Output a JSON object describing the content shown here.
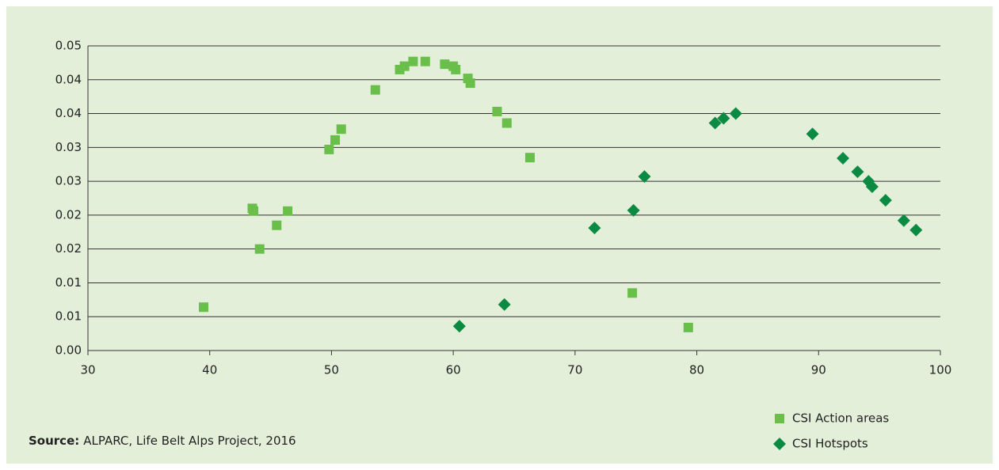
{
  "chart_data": {
    "type": "scatter",
    "xlim": [
      30,
      100
    ],
    "xticks": [
      30,
      40,
      50,
      60,
      70,
      80,
      90,
      100
    ],
    "ylim": [
      0,
      0.045
    ],
    "yticks": [
      {
        "value": 0,
        "label": "0.00"
      },
      {
        "value": 0.005,
        "label": "0.01"
      },
      {
        "value": 0.01,
        "label": "0.01"
      },
      {
        "value": 0.015,
        "label": "0.02"
      },
      {
        "value": 0.02,
        "label": "0.02"
      },
      {
        "value": 0.025,
        "label": "0.03"
      },
      {
        "value": 0.03,
        "label": "0.03"
      },
      {
        "value": 0.035,
        "label": "0.04"
      },
      {
        "value": 0.04,
        "label": "0.04"
      },
      {
        "value": 0.045,
        "label": "0.05"
      }
    ],
    "grid": true,
    "series": [
      {
        "name": "CSI Action areas",
        "color": "#6abf4b",
        "marker": "square",
        "x": [
          39.5,
          43.5,
          43.6,
          44.1,
          45.5,
          46.4,
          49.8,
          50.3,
          50.8,
          53.6,
          55.6,
          56.0,
          56.7,
          57.7,
          59.3,
          60.0,
          60.2,
          61.2,
          61.4,
          63.6,
          64.4,
          66.3,
          74.7,
          79.3
        ],
        "values": [
          0.0064,
          0.021,
          0.0206,
          0.015,
          0.0185,
          0.0206,
          0.0297,
          0.0311,
          0.0327,
          0.0385,
          0.0415,
          0.042,
          0.0427,
          0.0427,
          0.0423,
          0.042,
          0.0415,
          0.0402,
          0.0395,
          0.0353,
          0.0336,
          0.0285,
          0.0085,
          0.0034
        ]
      },
      {
        "name": "CSI Hotspots",
        "color": "#0b8a44",
        "marker": "diamond",
        "x": [
          60.5,
          64.2,
          71.6,
          74.8,
          75.7,
          81.5,
          82.2,
          83.2,
          89.5,
          92.0,
          93.2,
          94.1,
          94.4,
          95.5,
          97.0,
          98.0
        ],
        "values": [
          0.0036,
          0.0068,
          0.0181,
          0.0207,
          0.0257,
          0.0336,
          0.0343,
          0.035,
          0.032,
          0.0284,
          0.0264,
          0.025,
          0.0242,
          0.0222,
          0.0192,
          0.0178
        ]
      }
    ],
    "legend": "bottom-right",
    "source_label": "Source:",
    "source_text": "ALPARC, Life Belt Alps Project, 2016"
  }
}
